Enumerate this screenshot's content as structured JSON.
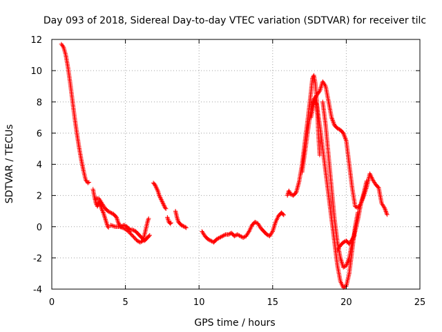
{
  "chart_data": {
    "type": "scatter",
    "title": "Day 093 of 2018, Sidereal Day-to-day VTEC variation (SDTVAR) for receiver tilc",
    "xlabel": "GPS time / hours",
    "ylabel": "SDTVAR / TECUs",
    "xlim": [
      0,
      25
    ],
    "ylim": [
      -4,
      12
    ],
    "x_ticks": [
      0,
      5,
      10,
      15,
      20,
      25
    ],
    "y_ticks": [
      -4,
      -2,
      0,
      2,
      4,
      6,
      8,
      10,
      12
    ],
    "x_tick_labels": [
      "0",
      "5",
      "10",
      "15",
      "20",
      "25"
    ],
    "y_tick_labels": [
      "-4",
      "-2",
      "0",
      "2",
      "4",
      "6",
      "8",
      "10",
      "12"
    ],
    "grid": true,
    "marker": "+",
    "color": "#ff0000",
    "series": [
      {
        "segments": [
          [
            [
              0.65,
              11.7
            ],
            [
              0.8,
              11.5
            ],
            [
              0.95,
              11.0
            ],
            [
              1.1,
              10.2
            ],
            [
              1.25,
              9.2
            ],
            [
              1.4,
              8.1
            ],
            [
              1.55,
              7.0
            ],
            [
              1.7,
              6.0
            ],
            [
              1.85,
              5.1
            ],
            [
              2.0,
              4.3
            ],
            [
              2.15,
              3.6
            ],
            [
              2.3,
              3.0
            ],
            [
              2.45,
              2.8
            ],
            [
              2.6,
              2.9
            ]
          ],
          [
            [
              2.8,
              2.4
            ],
            [
              2.9,
              1.9
            ],
            [
              3.0,
              1.5
            ],
            [
              3.1,
              1.3
            ],
            [
              3.2,
              1.6
            ],
            [
              3.3,
              1.4
            ],
            [
              3.4,
              1.1
            ],
            [
              3.5,
              0.9
            ],
            [
              3.6,
              0.6
            ],
            [
              3.7,
              0.3
            ],
            [
              3.8,
              0.0
            ],
            [
              3.9,
              -0.1
            ]
          ],
          [
            [
              3.0,
              1.8
            ],
            [
              3.2,
              1.8
            ],
            [
              3.4,
              1.5
            ],
            [
              3.6,
              1.2
            ],
            [
              3.8,
              1.0
            ],
            [
              4.0,
              0.9
            ],
            [
              4.2,
              0.8
            ],
            [
              4.4,
              0.6
            ],
            [
              4.5,
              0.3
            ],
            [
              4.6,
              0.1
            ],
            [
              4.7,
              0.0
            ],
            [
              4.9,
              0.1
            ],
            [
              5.1,
              0.0
            ],
            [
              5.3,
              -0.2
            ],
            [
              5.5,
              -0.2
            ],
            [
              5.7,
              -0.3
            ],
            [
              5.9,
              -0.5
            ],
            [
              6.1,
              -0.7
            ],
            [
              6.3,
              -0.9
            ],
            [
              6.5,
              -0.7
            ],
            [
              6.7,
              -0.5
            ]
          ],
          [
            [
              4.0,
              0.1
            ],
            [
              4.3,
              0.0
            ],
            [
              4.6,
              0.0
            ],
            [
              4.9,
              -0.1
            ],
            [
              5.2,
              -0.3
            ],
            [
              5.5,
              -0.6
            ],
            [
              5.8,
              -0.9
            ],
            [
              6.0,
              -1.0
            ],
            [
              6.2,
              -0.9
            ],
            [
              6.3,
              -0.5
            ],
            [
              6.4,
              -0.1
            ],
            [
              6.5,
              0.3
            ],
            [
              6.6,
              0.6
            ]
          ],
          [
            [
              6.9,
              2.8
            ],
            [
              7.0,
              2.7
            ],
            [
              7.1,
              2.5
            ],
            [
              7.2,
              2.3
            ],
            [
              7.3,
              2.0
            ],
            [
              7.4,
              1.8
            ],
            [
              7.5,
              1.6
            ],
            [
              7.6,
              1.4
            ],
            [
              7.7,
              1.2
            ],
            [
              7.8,
              1.1
            ]
          ],
          [
            [
              7.85,
              0.6
            ],
            [
              7.95,
              0.3
            ],
            [
              8.05,
              0.2
            ],
            [
              8.15,
              0.3
            ]
          ],
          [
            [
              8.4,
              1.0
            ],
            [
              8.5,
              0.6
            ],
            [
              8.6,
              0.3
            ],
            [
              8.8,
              0.1
            ],
            [
              9.0,
              0.0
            ],
            [
              9.2,
              -0.1
            ]
          ],
          [
            [
              10.2,
              -0.3
            ],
            [
              10.4,
              -0.6
            ],
            [
              10.6,
              -0.8
            ],
            [
              10.8,
              -0.9
            ],
            [
              11.0,
              -1.0
            ],
            [
              11.2,
              -0.8
            ],
            [
              11.4,
              -0.7
            ],
            [
              11.6,
              -0.6
            ],
            [
              11.8,
              -0.5
            ],
            [
              12.0,
              -0.5
            ],
            [
              12.2,
              -0.4
            ],
            [
              12.4,
              -0.6
            ],
            [
              12.6,
              -0.5
            ],
            [
              12.8,
              -0.6
            ],
            [
              13.0,
              -0.7
            ],
            [
              13.2,
              -0.6
            ],
            [
              13.4,
              -0.3
            ],
            [
              13.6,
              0.1
            ],
            [
              13.8,
              0.3
            ],
            [
              14.0,
              0.2
            ],
            [
              14.2,
              -0.1
            ],
            [
              14.4,
              -0.3
            ],
            [
              14.6,
              -0.5
            ],
            [
              14.8,
              -0.6
            ],
            [
              15.0,
              -0.3
            ],
            [
              15.2,
              0.3
            ],
            [
              15.4,
              0.7
            ],
            [
              15.6,
              0.9
            ],
            [
              15.8,
              0.7
            ]
          ],
          [
            [
              16.0,
              2.0
            ],
            [
              16.1,
              2.3
            ],
            [
              16.2,
              2.1
            ],
            [
              16.4,
              2.0
            ],
            [
              16.6,
              2.2
            ],
            [
              16.8,
              2.9
            ],
            [
              17.0,
              4.0
            ],
            [
              17.2,
              5.5
            ],
            [
              17.4,
              7.0
            ],
            [
              17.6,
              8.6
            ],
            [
              17.7,
              9.5
            ],
            [
              17.8,
              9.7
            ],
            [
              17.9,
              9.2
            ],
            [
              18.0,
              8.0
            ],
            [
              18.1,
              6.0
            ],
            [
              18.2,
              4.5
            ]
          ],
          [
            [
              17.0,
              3.5
            ],
            [
              17.2,
              4.8
            ],
            [
              17.4,
              6.2
            ],
            [
              17.6,
              7.5
            ],
            [
              17.8,
              8.2
            ],
            [
              18.0,
              7.8
            ],
            [
              18.2,
              6.5
            ],
            [
              18.4,
              5.0
            ],
            [
              18.6,
              3.5
            ],
            [
              18.8,
              2.0
            ],
            [
              19.0,
              0.5
            ],
            [
              19.2,
              -1.0
            ],
            [
              19.4,
              -2.5
            ],
            [
              19.6,
              -3.5
            ],
            [
              19.8,
              -3.9
            ],
            [
              20.0,
              -3.8
            ],
            [
              20.2,
              -3.0
            ],
            [
              20.4,
              -1.5
            ],
            [
              20.6,
              0.0
            ],
            [
              20.8,
              1.0
            ]
          ],
          [
            [
              17.6,
              7.0
            ],
            [
              17.9,
              8.3
            ],
            [
              18.2,
              8.7
            ],
            [
              18.4,
              9.3
            ],
            [
              18.6,
              9.0
            ],
            [
              18.8,
              8.0
            ],
            [
              19.0,
              7.0
            ],
            [
              19.2,
              6.5
            ],
            [
              19.4,
              6.3
            ],
            [
              19.6,
              6.2
            ],
            [
              19.8,
              6.0
            ],
            [
              20.0,
              5.5
            ],
            [
              20.2,
              4.0
            ],
            [
              20.4,
              2.5
            ],
            [
              20.6,
              1.3
            ],
            [
              20.8,
              1.2
            ],
            [
              21.0,
              1.5
            ],
            [
              21.2,
              2.0
            ],
            [
              21.4,
              2.6
            ],
            [
              21.6,
              3.4
            ],
            [
              21.8,
              3.0
            ],
            [
              22.0,
              2.7
            ],
            [
              22.2,
              2.5
            ],
            [
              22.4,
              1.5
            ],
            [
              22.6,
              1.2
            ],
            [
              22.8,
              0.7
            ]
          ],
          [
            [
              18.4,
              8.0
            ],
            [
              18.6,
              6.5
            ],
            [
              18.8,
              4.5
            ],
            [
              19.0,
              2.5
            ],
            [
              19.2,
              0.5
            ],
            [
              19.4,
              -1.0
            ],
            [
              19.6,
              -2.0
            ],
            [
              19.8,
              -2.6
            ],
            [
              20.0,
              -2.5
            ],
            [
              20.2,
              -2.0
            ],
            [
              20.4,
              -1.0
            ],
            [
              20.6,
              -0.3
            ],
            [
              20.8,
              0.5
            ],
            [
              21.0,
              1.5
            ],
            [
              21.2,
              2.2
            ],
            [
              21.4,
              3.0
            ]
          ],
          [
            [
              19.4,
              -1.5
            ],
            [
              19.6,
              -1.2
            ],
            [
              19.8,
              -1.0
            ],
            [
              20.0,
              -0.9
            ],
            [
              20.2,
              -1.1
            ],
            [
              20.4,
              -0.8
            ],
            [
              20.6,
              -0.5
            ]
          ]
        ]
      }
    ]
  }
}
